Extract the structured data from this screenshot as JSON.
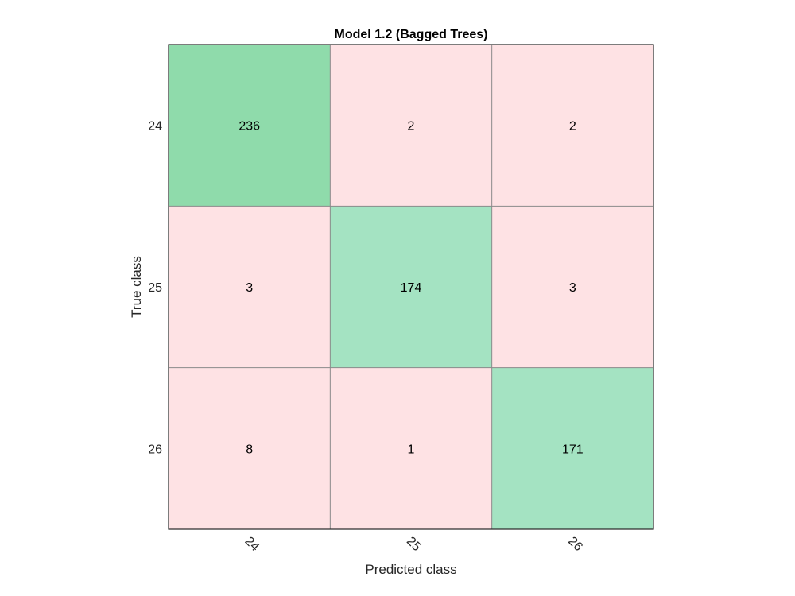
{
  "chart_data": {
    "type": "heatmap",
    "title": "Model 1.2 (Bagged Trees)",
    "xlabel": "Predicted class",
    "ylabel": "True class",
    "row_labels": [
      "24",
      "25",
      "26"
    ],
    "col_labels": [
      "24",
      "25",
      "26"
    ],
    "values": [
      [
        236,
        2,
        2
      ],
      [
        3,
        174,
        3
      ],
      [
        8,
        1,
        171
      ]
    ],
    "colors": {
      "correct_strong": "#8fdbab",
      "correct": "#a4e3c2",
      "incorrect": "#fee2e4",
      "grid_line": "#8a8a8a",
      "frame": "#262626"
    }
  }
}
